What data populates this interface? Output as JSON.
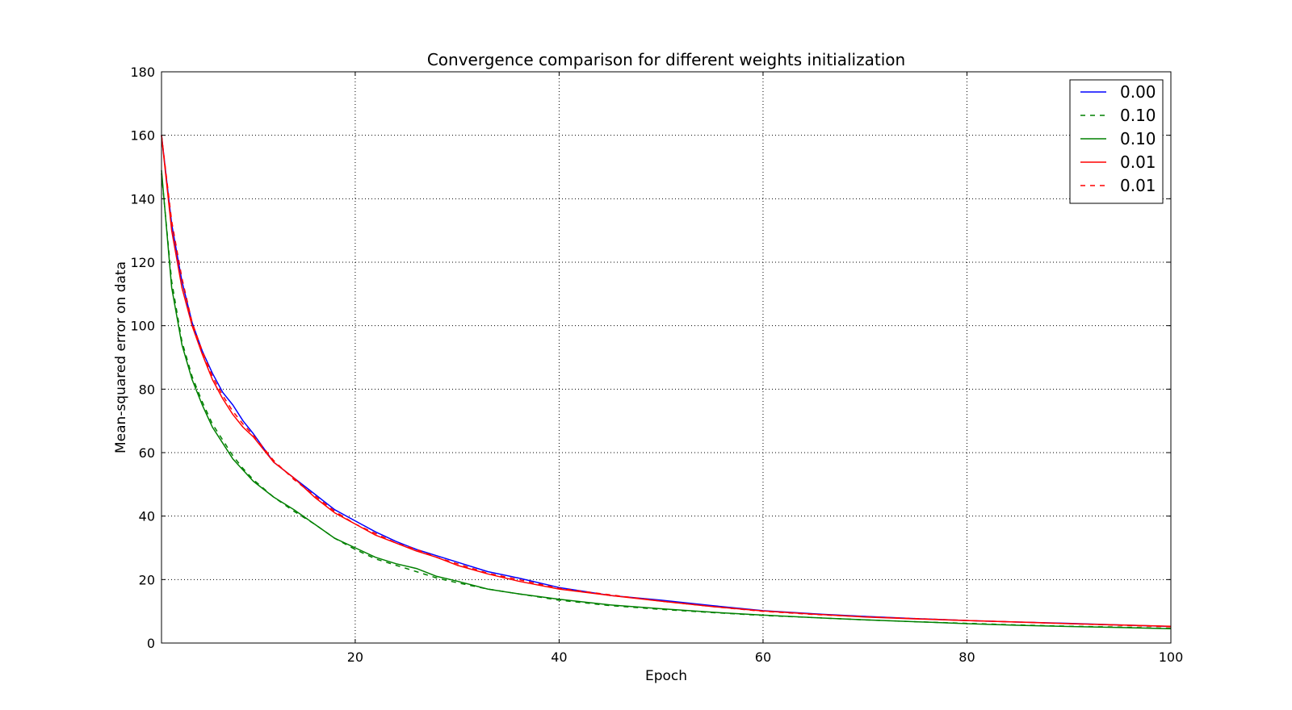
{
  "chart_data": {
    "type": "line",
    "title": "Convergence comparison for different weights initialization",
    "xlabel": "Epoch",
    "ylabel": "Mean-squared error on data",
    "xlim": [
      1,
      100
    ],
    "ylim": [
      0,
      180
    ],
    "xticks": [
      20,
      40,
      60,
      80,
      100
    ],
    "yticks": [
      0,
      20,
      40,
      60,
      80,
      100,
      120,
      140,
      160,
      180
    ],
    "grid": true,
    "legend_position": "top-right",
    "x": [
      1,
      2,
      3,
      4,
      5,
      6,
      7,
      8,
      9,
      10,
      12,
      14,
      16,
      18,
      20,
      22,
      24,
      26,
      28,
      30,
      33,
      36,
      40,
      45,
      50,
      55,
      60,
      65,
      70,
      75,
      80,
      85,
      90,
      95,
      100
    ],
    "series": [
      {
        "name": "0.00",
        "color": "#0000ff",
        "dash": "solid",
        "values": [
          160,
          132,
          114,
          101,
          92,
          85,
          79,
          75,
          70,
          66,
          57,
          52,
          47,
          42,
          38.5,
          35,
          32,
          29.5,
          27.5,
          25.5,
          22.5,
          20.5,
          17.5,
          15,
          13.5,
          11.8,
          10.2,
          9.2,
          8.4,
          7.7,
          7.1,
          6.6,
          6.2,
          5.7,
          5.2
        ]
      },
      {
        "name": "0.10",
        "color": "#008000",
        "dash": "dashed",
        "values": [
          148,
          114,
          95,
          84,
          76,
          69,
          64,
          59,
          55,
          51.5,
          46,
          41.5,
          37.5,
          33,
          29.5,
          26.5,
          24.5,
          22.5,
          20.5,
          19,
          17,
          15.5,
          13.5,
          11.8,
          10.6,
          9.6,
          8.7,
          8,
          7.3,
          6.7,
          6.2,
          5.7,
          5.3,
          5,
          4.6
        ]
      },
      {
        "name": "0.10",
        "color": "#008000",
        "dash": "solid",
        "values": [
          149,
          112,
          94,
          83,
          75,
          68,
          63,
          58,
          54.5,
          51,
          46,
          42,
          37.5,
          33,
          30,
          27,
          25,
          23.5,
          21,
          19.5,
          17,
          15.5,
          13.8,
          12,
          10.8,
          9.7,
          8.8,
          8,
          7.3,
          6.7,
          6.1,
          5.6,
          5.2,
          4.9,
          4.5
        ]
      },
      {
        "name": "0.01",
        "color": "#ff0000",
        "dash": "solid",
        "values": [
          160,
          130,
          112,
          100,
          91,
          83,
          77,
          72,
          68,
          65,
          57,
          52,
          46,
          41,
          37.5,
          34,
          31.5,
          29,
          27,
          24.5,
          21.8,
          19.5,
          17,
          15,
          13.2,
          11.5,
          10.1,
          9.1,
          8.2,
          7.6,
          7.1,
          6.6,
          6.1,
          5.7,
          5.3
        ]
      },
      {
        "name": "0.01",
        "color": "#ff0000",
        "dash": "dashed",
        "values": [
          160,
          133,
          115,
          101,
          92,
          84,
          78,
          73,
          69,
          65.5,
          57.5,
          51.5,
          46.5,
          41.5,
          37.5,
          34.5,
          31.5,
          29.5,
          27,
          25,
          22,
          20,
          17.2,
          15.2,
          13.2,
          11.5,
          10,
          9,
          8.3,
          7.7,
          7.1,
          6.6,
          6.1,
          5.6,
          5.1
        ]
      }
    ]
  }
}
